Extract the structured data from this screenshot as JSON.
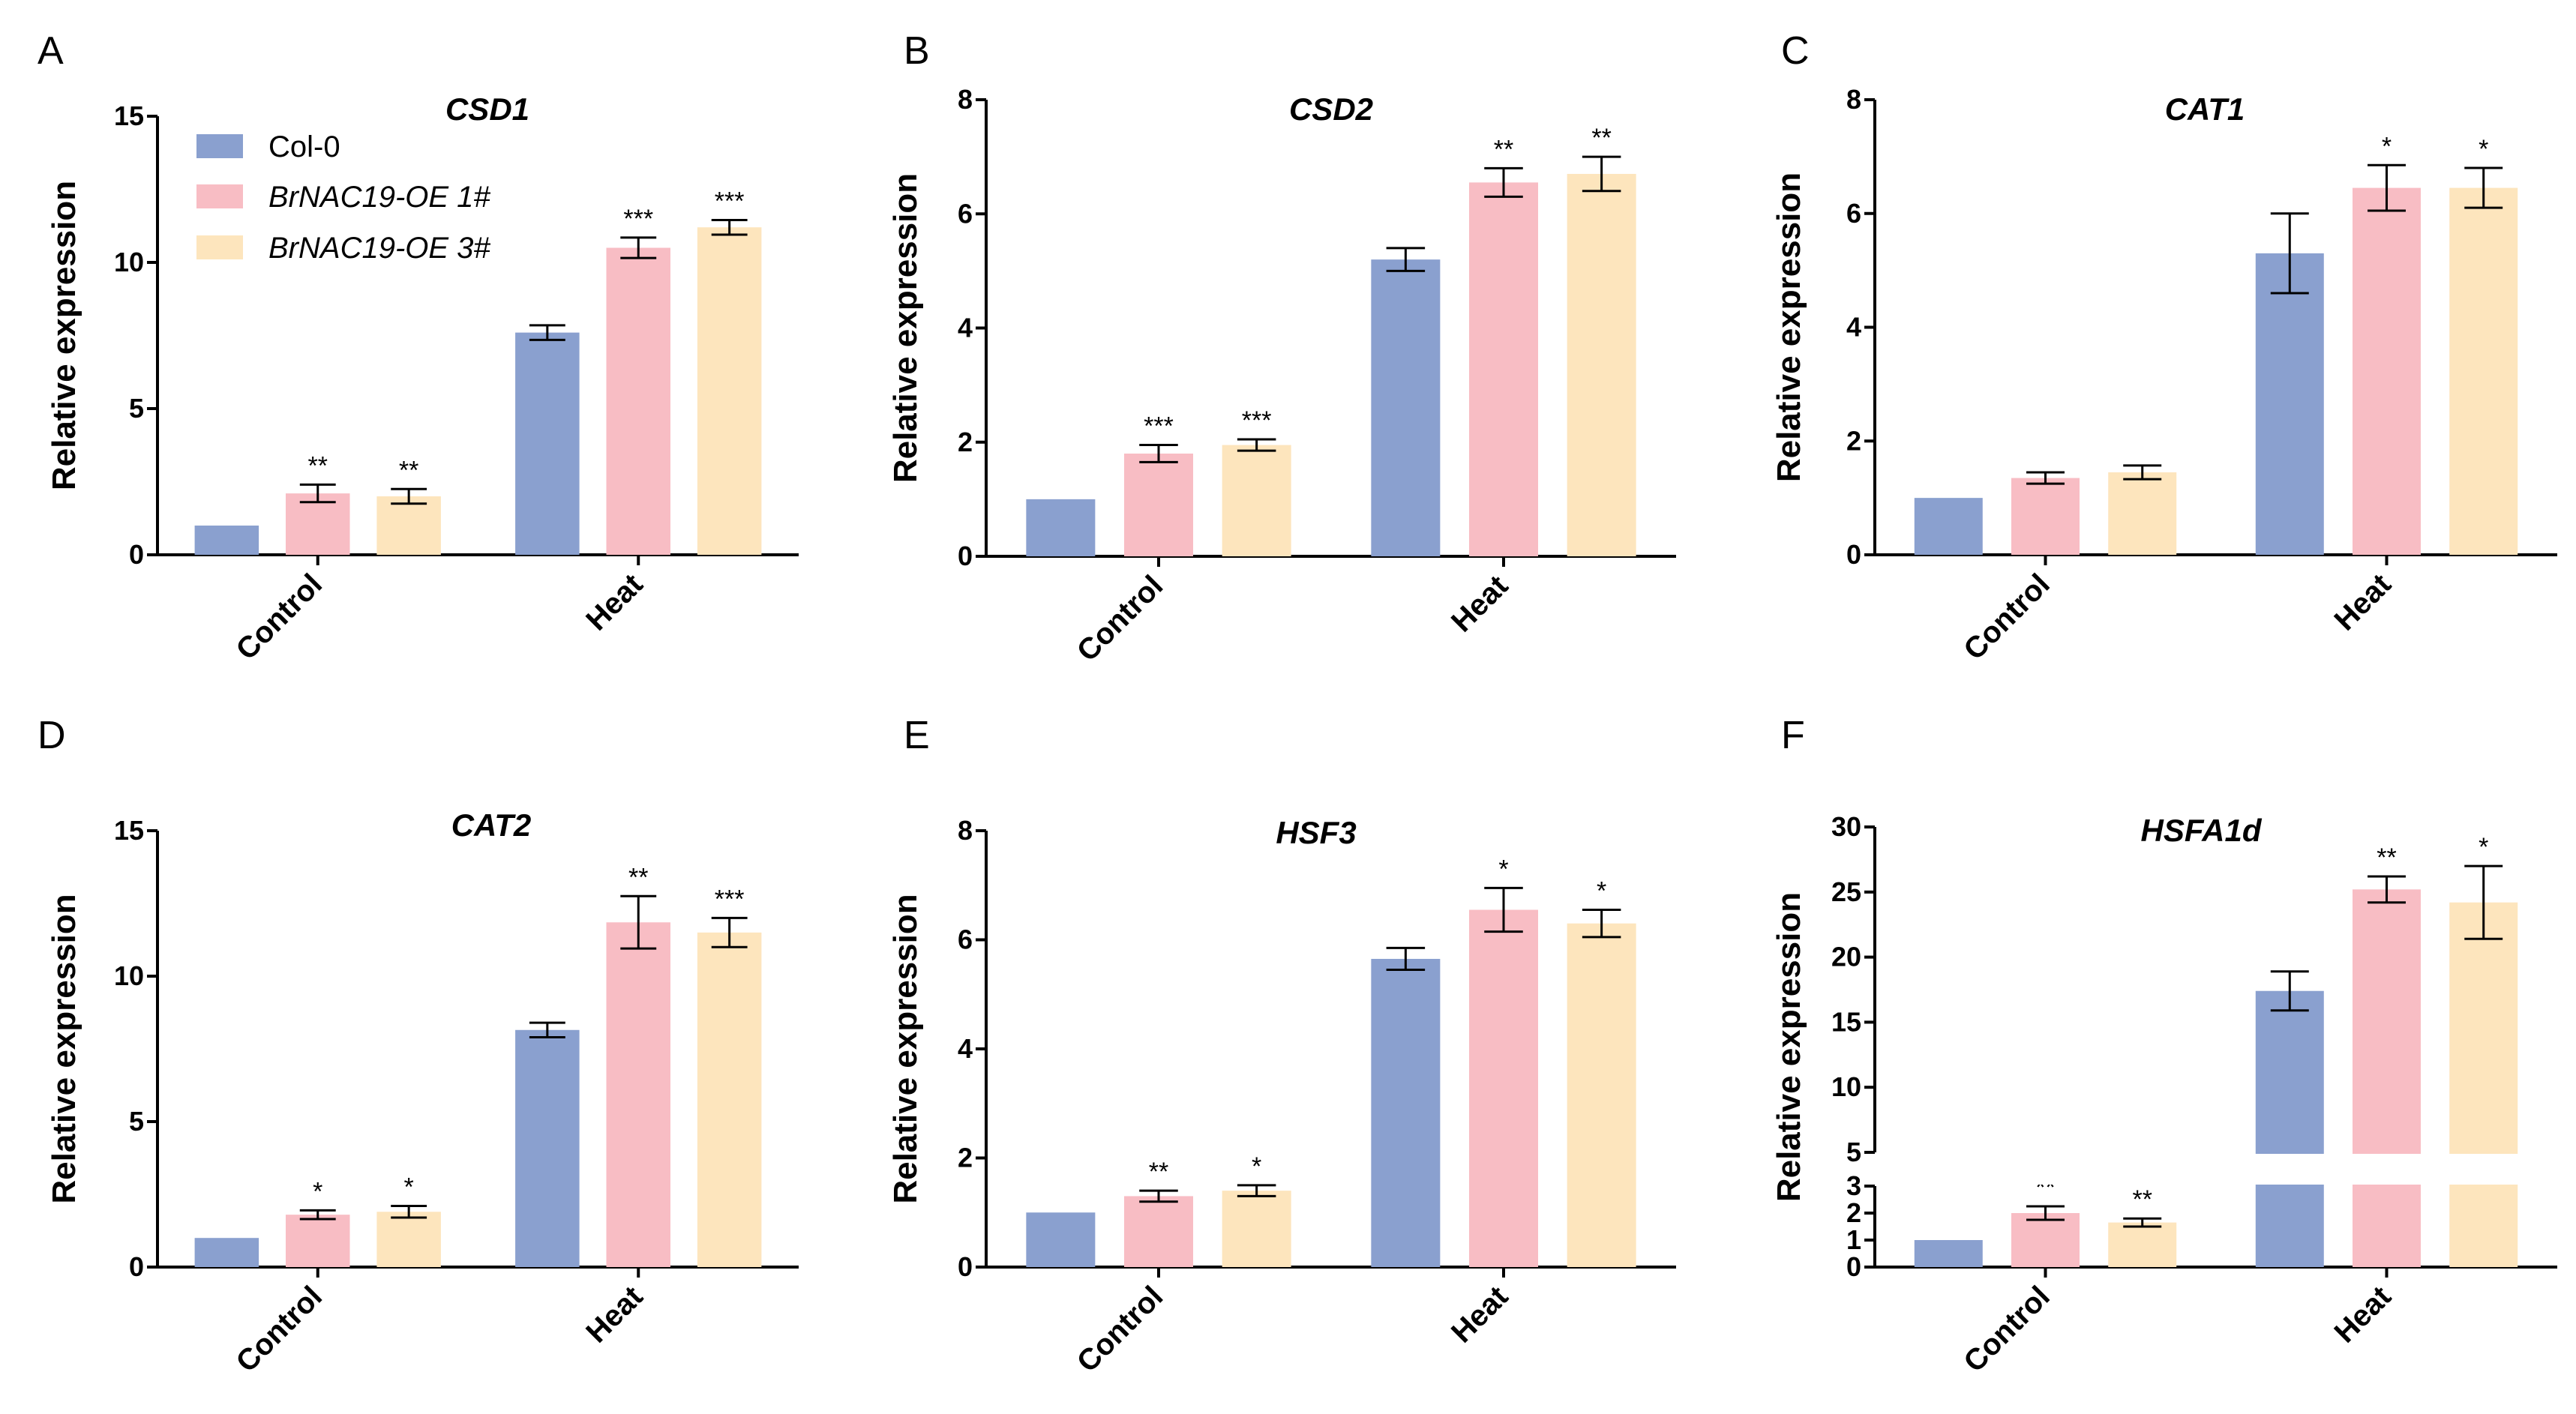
{
  "legend": [
    {
      "label": "Col-0",
      "color": "#8aa0cf",
      "italic": false
    },
    {
      "label": "BrNAC19-OE 1#",
      "color": "#f8bdc4",
      "italic": true
    },
    {
      "label": "BrNAC19-OE 3#",
      "color": "#fde5bd",
      "italic": true
    }
  ],
  "chart_data": [
    {
      "panel": "A",
      "type": "bar",
      "title": "CSD1",
      "ylabel": "Relative expression",
      "xlabel": "",
      "categories": [
        "Control",
        "Heat"
      ],
      "ylim": [
        0,
        15
      ],
      "yticks": [
        0,
        5,
        10,
        15
      ],
      "series": [
        {
          "name": "Col-0",
          "values": [
            1.0,
            7.6
          ],
          "errors": [
            0.0,
            0.25
          ],
          "sig": [
            "",
            ""
          ]
        },
        {
          "name": "BrNAC19-OE 1#",
          "values": [
            2.1,
            10.5
          ],
          "errors": [
            0.3,
            0.35
          ],
          "sig": [
            "**",
            "***"
          ]
        },
        {
          "name": "BrNAC19-OE 3#",
          "values": [
            2.0,
            11.2
          ],
          "errors": [
            0.25,
            0.25
          ],
          "sig": [
            "**",
            "***"
          ]
        }
      ]
    },
    {
      "panel": "B",
      "type": "bar",
      "title": "CSD2",
      "ylabel": "Relative expression",
      "xlabel": "",
      "categories": [
        "Control",
        "Heat"
      ],
      "ylim": [
        0,
        8
      ],
      "yticks": [
        0,
        2,
        4,
        6,
        8
      ],
      "series": [
        {
          "name": "Col-0",
          "values": [
            1.0,
            5.2
          ],
          "errors": [
            0.0,
            0.2
          ],
          "sig": [
            "",
            ""
          ]
        },
        {
          "name": "BrNAC19-OE 1#",
          "values": [
            1.8,
            6.55
          ],
          "errors": [
            0.15,
            0.25
          ],
          "sig": [
            "***",
            "**"
          ]
        },
        {
          "name": "BrNAC19-OE 3#",
          "values": [
            1.95,
            6.7
          ],
          "errors": [
            0.1,
            0.3
          ],
          "sig": [
            "***",
            "**"
          ]
        }
      ]
    },
    {
      "panel": "C",
      "type": "bar",
      "title": "CAT1",
      "ylabel": "Relative expression",
      "xlabel": "",
      "categories": [
        "Control",
        "Heat"
      ],
      "ylim": [
        0,
        8
      ],
      "yticks": [
        0,
        2,
        4,
        6,
        8
      ],
      "series": [
        {
          "name": "Col-0",
          "values": [
            1.0,
            5.3
          ],
          "errors": [
            0.0,
            0.7
          ],
          "sig": [
            "",
            ""
          ]
        },
        {
          "name": "BrNAC19-OE 1#",
          "values": [
            1.35,
            6.45
          ],
          "errors": [
            0.1,
            0.4
          ],
          "sig": [
            "",
            "*"
          ]
        },
        {
          "name": "BrNAC19-OE 3#",
          "values": [
            1.45,
            6.45
          ],
          "errors": [
            0.12,
            0.35
          ],
          "sig": [
            "",
            "*"
          ]
        }
      ]
    },
    {
      "panel": "D",
      "type": "bar",
      "title": "CAT2",
      "ylabel": "Relative expression",
      "xlabel": "",
      "categories": [
        "Control",
        "Heat"
      ],
      "ylim": [
        0,
        15
      ],
      "yticks": [
        0,
        5,
        10,
        15
      ],
      "series": [
        {
          "name": "Col-0",
          "values": [
            1.0,
            8.15
          ],
          "errors": [
            0.0,
            0.25
          ],
          "sig": [
            "",
            ""
          ]
        },
        {
          "name": "BrNAC19-OE 1#",
          "values": [
            1.8,
            11.85
          ],
          "errors": [
            0.15,
            0.9
          ],
          "sig": [
            "*",
            "**"
          ]
        },
        {
          "name": "BrNAC19-OE 3#",
          "values": [
            1.9,
            11.5
          ],
          "errors": [
            0.2,
            0.5
          ],
          "sig": [
            "*",
            "***"
          ]
        }
      ]
    },
    {
      "panel": "E",
      "type": "bar",
      "title": "HSF3",
      "ylabel": "Relative expression",
      "xlabel": "",
      "categories": [
        "Control",
        "Heat"
      ],
      "ylim": [
        0,
        8
      ],
      "yticks": [
        0,
        2,
        4,
        6,
        8
      ],
      "series": [
        {
          "name": "Col-0",
          "values": [
            1.0,
            5.65
          ],
          "errors": [
            0.0,
            0.2
          ],
          "sig": [
            "",
            ""
          ]
        },
        {
          "name": "BrNAC19-OE 1#",
          "values": [
            1.3,
            6.55
          ],
          "errors": [
            0.1,
            0.4
          ],
          "sig": [
            "**",
            "*"
          ]
        },
        {
          "name": "BrNAC19-OE 3#",
          "values": [
            1.4,
            6.3
          ],
          "errors": [
            0.1,
            0.25
          ],
          "sig": [
            "*",
            "*"
          ]
        }
      ]
    },
    {
      "panel": "F",
      "type": "bar",
      "title": "HSFA1d",
      "ylabel": "Relative expression",
      "xlabel": "",
      "categories": [
        "Control",
        "Heat"
      ],
      "ylim": [
        0,
        30
      ],
      "yticks": [
        0,
        1,
        2,
        3,
        5,
        10,
        15,
        20,
        25,
        30
      ],
      "axis_break": [
        3,
        5
      ],
      "series": [
        {
          "name": "Col-0",
          "values": [
            1.0,
            17.4
          ],
          "errors": [
            0.0,
            1.5
          ],
          "sig": [
            "",
            ""
          ]
        },
        {
          "name": "BrNAC19-OE 1#",
          "values": [
            2.0,
            25.2
          ],
          "errors": [
            0.25,
            1.0
          ],
          "sig": [
            "**",
            "**"
          ]
        },
        {
          "name": "BrNAC19-OE 3#",
          "values": [
            1.65,
            24.2
          ],
          "errors": [
            0.15,
            2.8
          ],
          "sig": [
            "**",
            "*"
          ]
        }
      ]
    }
  ]
}
